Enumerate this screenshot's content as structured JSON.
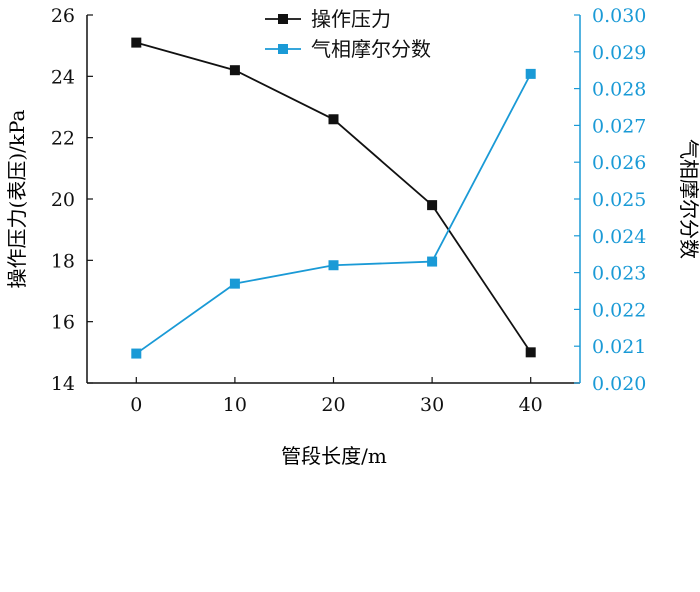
{
  "chart_data": {
    "type": "line",
    "x": [
      0,
      10,
      20,
      30,
      40
    ],
    "xlabel": "管段长度/m",
    "xticks": [
      "0",
      "10",
      "20",
      "30",
      "40"
    ],
    "xlim": [
      -5,
      45
    ],
    "series": [
      {
        "name": "操作压力",
        "axis": "left",
        "color": "#111111",
        "marker": "square",
        "values": [
          25.1,
          24.2,
          22.6,
          19.8,
          15.0
        ]
      },
      {
        "name": "气相摩尔分数",
        "axis": "right",
        "color": "#1a9ad6",
        "marker": "square",
        "values": [
          0.0208,
          0.0227,
          0.0232,
          0.0233,
          0.0284
        ]
      }
    ],
    "y_left": {
      "label": "操作压力(表压)/kPa",
      "lim": [
        14,
        26
      ],
      "ticks": [
        "14",
        "16",
        "18",
        "20",
        "22",
        "24",
        "26"
      ]
    },
    "y_right": {
      "label": "气相摩尔分数",
      "lim": [
        0.02,
        0.03
      ],
      "ticks": [
        "0.020",
        "0.021",
        "0.022",
        "0.023",
        "0.024",
        "0.025",
        "0.026",
        "0.027",
        "0.028",
        "0.029",
        "0.030"
      ]
    },
    "legend_position": "top-center",
    "grid": false
  }
}
